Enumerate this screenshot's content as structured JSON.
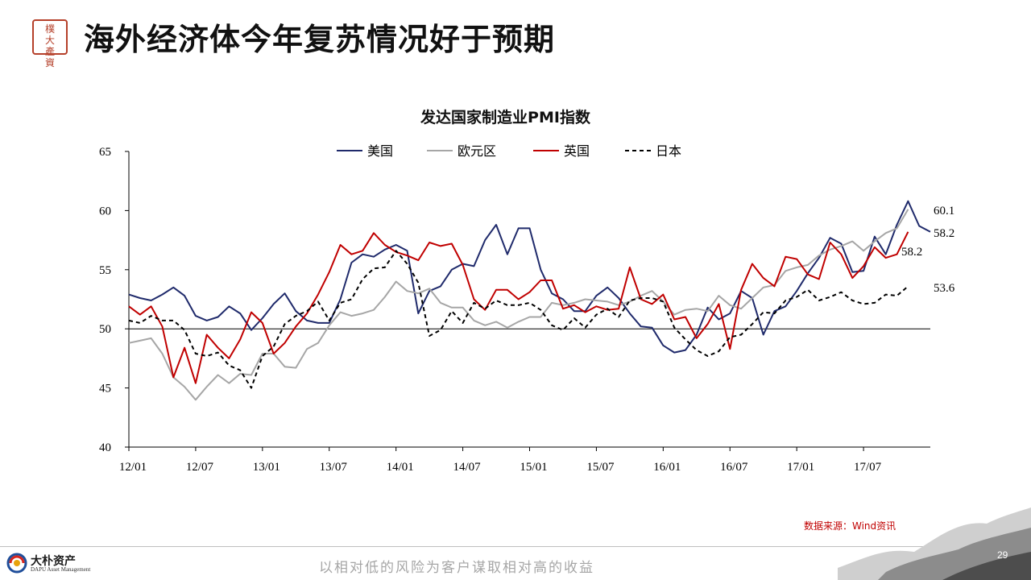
{
  "header": {
    "title": "海外经济体今年复苏情况好于预期",
    "seal_text": "大樸資產"
  },
  "chart_data": {
    "type": "line",
    "title": "发达国家制造业PMI指数",
    "xlabel": "",
    "ylabel": "",
    "ylim": [
      40,
      65
    ],
    "yticks": [
      40,
      45,
      50,
      55,
      60,
      65
    ],
    "xtick_labels": [
      "12/01",
      "12/07",
      "13/01",
      "13/07",
      "14/01",
      "14/07",
      "15/01",
      "15/07",
      "16/01",
      "16/07",
      "17/01",
      "17/07"
    ],
    "x_start": "2012-01",
    "reference_line": 50,
    "legend_position": "top",
    "series": [
      {
        "name": "美国",
        "color": "#1f2a6b",
        "dash": false,
        "end_label": "58.2",
        "values": [
          52.9,
          52.6,
          52.4,
          52.9,
          53.5,
          52.8,
          51.1,
          50.7,
          51.0,
          51.9,
          51.3,
          49.9,
          50.9,
          52.1,
          53.0,
          51.5,
          50.7,
          50.5,
          50.5,
          52.5,
          55.6,
          56.3,
          56.1,
          56.7,
          57.1,
          56.6,
          51.3,
          53.2,
          53.6,
          55.0,
          55.5,
          55.3,
          57.5,
          58.8,
          56.3,
          58.5,
          58.5,
          55.0,
          53.0,
          52.5,
          51.5,
          51.5,
          52.8,
          53.5,
          52.6,
          51.3,
          50.2,
          50.1,
          48.6,
          48.0,
          48.2,
          49.5,
          51.8,
          50.8,
          51.3,
          53.2,
          52.6,
          49.5,
          51.5,
          51.9,
          53.2,
          54.7,
          56.0,
          57.7,
          57.2,
          54.8,
          54.9,
          57.8,
          56.3,
          58.8,
          60.8,
          58.7,
          58.2
        ]
      },
      {
        "name": "欧元区",
        "color": "#a6a6a6",
        "dash": false,
        "end_label": "60.1",
        "values": [
          48.8,
          49.0,
          49.2,
          47.9,
          45.9,
          45.1,
          44.0,
          45.1,
          46.1,
          45.4,
          46.2,
          46.1,
          47.9,
          47.9,
          46.8,
          46.7,
          48.3,
          48.8,
          50.3,
          51.4,
          51.1,
          51.3,
          51.6,
          52.7,
          54.0,
          53.2,
          53.0,
          53.4,
          52.2,
          51.8,
          51.8,
          50.7,
          50.3,
          50.6,
          50.1,
          50.6,
          51.0,
          51.0,
          52.2,
          52.0,
          52.2,
          52.5,
          52.4,
          52.3,
          52.0,
          52.3,
          52.8,
          53.2,
          52.3,
          51.2,
          51.6,
          51.7,
          51.5,
          52.8,
          52.0,
          51.7,
          52.6,
          53.5,
          53.7,
          54.9,
          55.2,
          55.4,
          56.2,
          56.7,
          57.0,
          57.4,
          56.6,
          57.4,
          58.1,
          58.5,
          60.1
        ]
      },
      {
        "name": "英国",
        "color": "#c00000",
        "dash": false,
        "end_label": "58.2",
        "values": [
          51.9,
          51.2,
          51.9,
          50.2,
          45.9,
          48.4,
          45.4,
          49.5,
          48.4,
          47.5,
          49.1,
          51.4,
          50.5,
          47.9,
          48.8,
          50.2,
          51.3,
          52.9,
          54.8,
          57.1,
          56.3,
          56.6,
          58.1,
          57.1,
          56.5,
          56.2,
          55.8,
          57.3,
          57.0,
          57.2,
          55.4,
          52.5,
          51.6,
          53.3,
          53.3,
          52.5,
          53.1,
          54.1,
          54.1,
          51.7,
          52.0,
          51.4,
          51.9,
          51.6,
          51.7,
          55.2,
          52.5,
          52.1,
          52.9,
          50.8,
          51.0,
          49.2,
          50.4,
          52.1,
          48.3,
          53.3,
          55.5,
          54.3,
          53.6,
          56.1,
          55.9,
          54.6,
          54.2,
          57.3,
          56.3,
          54.3,
          55.3,
          56.9,
          56.0,
          56.3,
          58.2
        ]
      },
      {
        "name": "日本",
        "color": "#000000",
        "dash": true,
        "end_label": "53.6",
        "values": [
          50.7,
          50.5,
          51.1,
          50.7,
          50.7,
          49.9,
          47.9,
          47.7,
          48.0,
          46.9,
          46.5,
          45.0,
          47.7,
          48.5,
          50.4,
          51.1,
          51.5,
          52.3,
          50.7,
          52.2,
          52.5,
          54.2,
          55.1,
          55.2,
          56.6,
          55.5,
          53.9,
          49.4,
          49.9,
          51.5,
          50.5,
          52.2,
          51.7,
          52.4,
          52.0,
          52.0,
          52.2,
          51.6,
          50.3,
          49.9,
          50.9,
          50.1,
          51.2,
          51.7,
          51.0,
          52.4,
          52.6,
          52.6,
          52.3,
          50.1,
          49.1,
          48.2,
          47.7,
          48.1,
          49.3,
          49.5,
          50.4,
          51.4,
          51.3,
          52.4,
          52.7,
          53.3,
          52.4,
          52.7,
          53.1,
          52.4,
          52.1,
          52.2,
          52.9,
          52.8,
          53.6
        ]
      }
    ]
  },
  "source": "数据来源：Wind资讯",
  "footer": {
    "company_cn": "大朴资产",
    "company_en": "DAPU Asset Management",
    "slogan": "以相对低的风险为客户谋取相对高的收益",
    "page_number": "29"
  }
}
